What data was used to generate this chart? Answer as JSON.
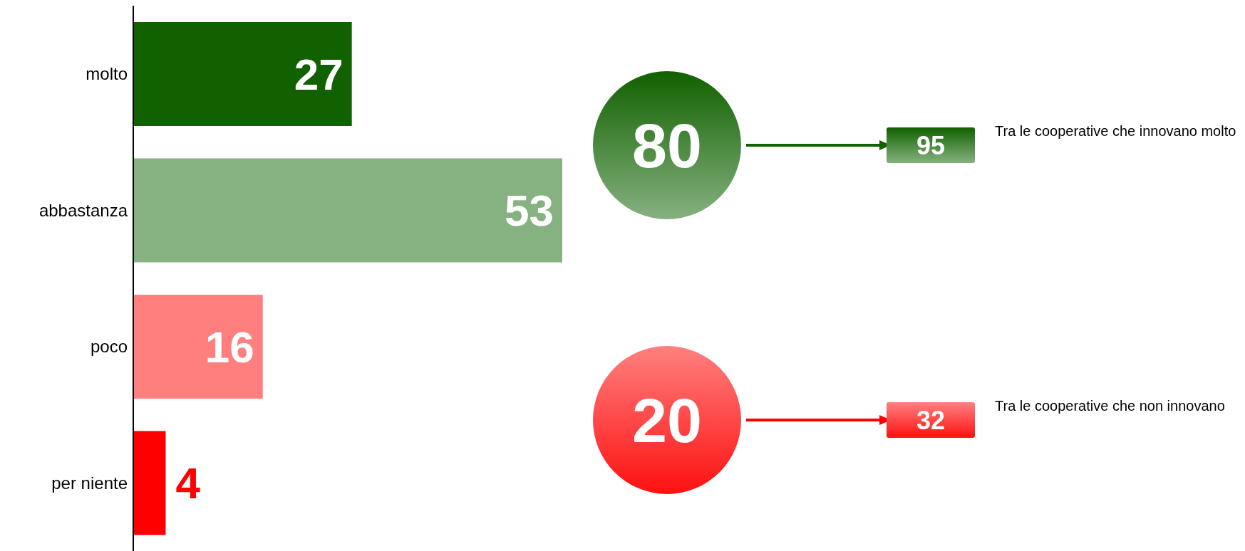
{
  "chart_data": {
    "type": "bar",
    "orientation": "horizontal",
    "categories": [
      "molto",
      "abbastanza",
      "poco",
      "per niente"
    ],
    "values": [
      27,
      53,
      16,
      4
    ],
    "colors": [
      "#116100",
      "#86b180",
      "#ff7f7f",
      "#ff0000"
    ],
    "data_labels": true,
    "annotations": [
      "80",
      "95",
      "Tra le cooperative che innovano molto",
      "20",
      "32",
      "Tra le cooperative che non innovano"
    ]
  }
}
